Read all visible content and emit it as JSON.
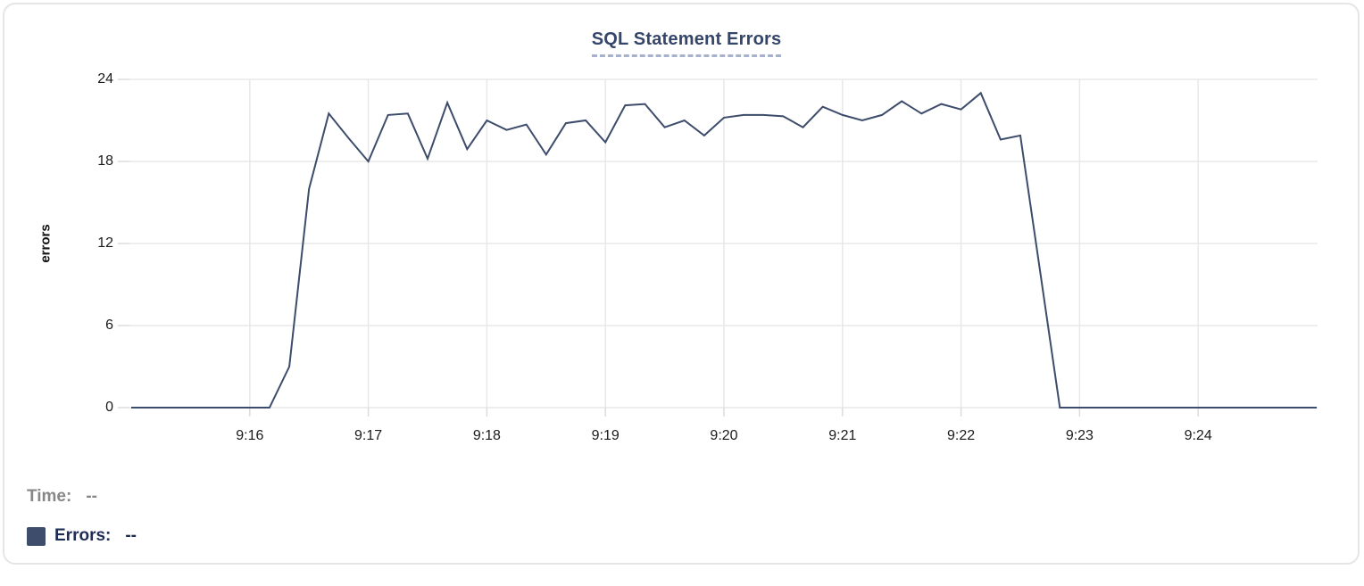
{
  "chart_data": {
    "type": "line",
    "title": "SQL Statement Errors",
    "ylabel": "errors",
    "xlim": [
      "9:15:00",
      "9:25:00"
    ],
    "ylim": [
      0,
      24
    ],
    "y_ticks": [
      0,
      6,
      12,
      18,
      24
    ],
    "x_ticks": [
      "9:16",
      "9:17",
      "9:18",
      "9:19",
      "9:20",
      "9:21",
      "9:22",
      "9:23",
      "9:24"
    ],
    "grid": true,
    "legend_position": "bottom-left",
    "series": [
      {
        "name": "Errors",
        "color": "#3d4c6b",
        "times": [
          "9:15:00",
          "9:15:10",
          "9:15:20",
          "9:15:30",
          "9:15:40",
          "9:15:50",
          "9:16:00",
          "9:16:10",
          "9:16:20",
          "9:16:30",
          "9:16:40",
          "9:16:50",
          "9:17:00",
          "9:17:10",
          "9:17:20",
          "9:17:30",
          "9:17:40",
          "9:17:50",
          "9:18:00",
          "9:18:10",
          "9:18:20",
          "9:18:30",
          "9:18:40",
          "9:18:50",
          "9:19:00",
          "9:19:10",
          "9:19:20",
          "9:19:30",
          "9:19:40",
          "9:19:50",
          "9:20:00",
          "9:20:10",
          "9:20:20",
          "9:20:30",
          "9:20:40",
          "9:20:50",
          "9:21:00",
          "9:21:10",
          "9:21:20",
          "9:21:30",
          "9:21:40",
          "9:21:50",
          "9:22:00",
          "9:22:10",
          "9:22:20",
          "9:22:30",
          "9:22:40",
          "9:22:50",
          "9:23:00",
          "9:23:10",
          "9:23:20",
          "9:23:30",
          "9:23:40",
          "9:23:50",
          "9:24:00",
          "9:24:10",
          "9:24:20",
          "9:24:30",
          "9:24:40",
          "9:24:50",
          "9:25:00"
        ],
        "values": [
          0,
          0,
          0,
          0,
          0,
          0,
          0,
          0,
          3,
          16,
          21.5,
          19.7,
          18,
          21.4,
          21.5,
          18.2,
          22.3,
          18.9,
          21,
          20.3,
          20.7,
          18.5,
          20.8,
          21,
          19.4,
          22.1,
          22.2,
          20.5,
          21,
          19.9,
          21.2,
          21.4,
          21.4,
          21.3,
          20.5,
          22,
          21.4,
          21,
          21.4,
          22.4,
          21.5,
          22.2,
          21.8,
          23,
          19.6,
          19.9,
          10,
          0,
          0,
          0,
          0,
          0,
          0,
          0,
          0,
          0,
          0,
          0,
          0,
          0,
          0
        ]
      }
    ]
  },
  "legend": {
    "time_label": "Time:",
    "time_value": "--",
    "errors_label": "Errors:",
    "errors_value": "--",
    "swatch_color": "#3e4d6b"
  },
  "colors": {
    "title": "#35466b",
    "title_underline": "#a6b1cb",
    "line": "#3d4c6b",
    "gridline": "#e8e8e8",
    "tick_stub": "#dcdcdc",
    "tick_text": "#1a1a1a",
    "time_text": "#878787",
    "errors_text": "#1e2d55",
    "card_border": "#e5e5e5"
  }
}
